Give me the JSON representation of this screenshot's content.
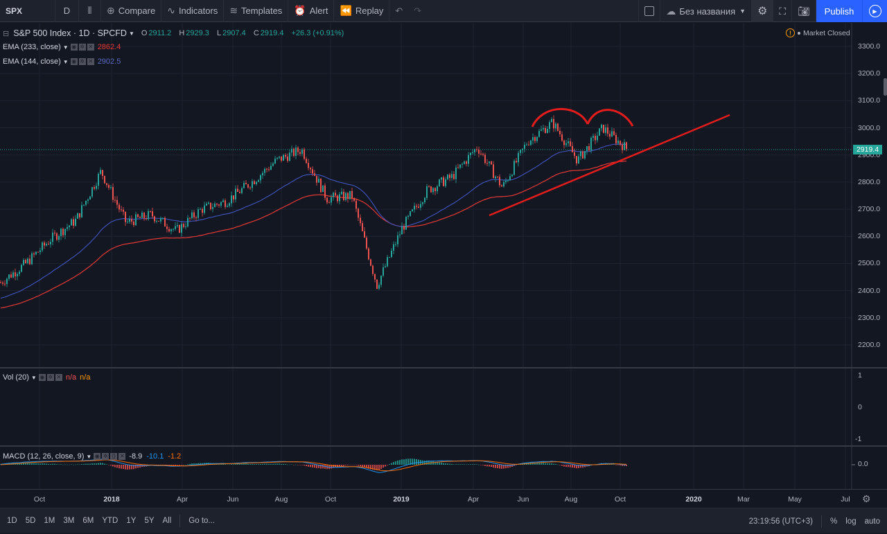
{
  "toolbar": {
    "symbol": "SPX",
    "interval": "D",
    "compare": "Compare",
    "indicators": "Indicators",
    "templates": "Templates",
    "alert": "Alert",
    "replay": "Replay",
    "layout_name": "Без названия",
    "publish": "Publish"
  },
  "main_legend": {
    "title": "S&P 500 Index · 1D · SPCFD",
    "open_k": "O",
    "open": "2911.2",
    "high_k": "H",
    "high": "2929.3",
    "low_k": "L",
    "low": "2907.4",
    "close_k": "C",
    "close": "2919.4",
    "change": "+26.3 (+0.91%)"
  },
  "ema1": {
    "label": "EMA (233, close)",
    "value": "2862.4",
    "color": "#e53935"
  },
  "ema2": {
    "label": "EMA (144, close)",
    "value": "2902.5",
    "color": "#3f51b5"
  },
  "market_status": "Market Closed",
  "price_axis": [
    "3300.0",
    "3200.0",
    "3100.0",
    "3000.0",
    "2900.0",
    "2800.0",
    "2700.0",
    "2600.0",
    "2500.0",
    "2400.0",
    "2300.0",
    "2200.0"
  ],
  "last_price": "2919.4",
  "vol": {
    "label": "Vol (20)",
    "v1": "n/a",
    "v2": "n/a",
    "axis": [
      "1",
      "0",
      "-1"
    ]
  },
  "macd": {
    "label": "MACD (12, 26, close, 9)",
    "v1": "-8.9",
    "v2": "-10.1",
    "v3": "-1.2",
    "axis": "0.0"
  },
  "time_axis": [
    {
      "label": "Oct",
      "bold": false
    },
    {
      "label": "2018",
      "bold": true
    },
    {
      "label": "Apr",
      "bold": false
    },
    {
      "label": "Jun",
      "bold": false
    },
    {
      "label": "Aug",
      "bold": false
    },
    {
      "label": "Oct",
      "bold": false
    },
    {
      "label": "2019",
      "bold": true
    },
    {
      "label": "Apr",
      "bold": false
    },
    {
      "label": "Jun",
      "bold": false
    },
    {
      "label": "Aug",
      "bold": false
    },
    {
      "label": "Oct",
      "bold": false
    },
    {
      "label": "2020",
      "bold": true
    },
    {
      "label": "Mar",
      "bold": false
    },
    {
      "label": "May",
      "bold": false
    },
    {
      "label": "Jul",
      "bold": false
    }
  ],
  "bottom": {
    "ranges": [
      "1D",
      "5D",
      "1M",
      "3M",
      "6M",
      "YTD",
      "1Y",
      "5Y",
      "All"
    ],
    "goto": "Go to...",
    "clock": "23:19:56 (UTC+3)",
    "percent": "%",
    "log": "log",
    "auto": "auto"
  },
  "colors": {
    "up": "#26a69a",
    "down": "#ef5350",
    "bg": "#131722",
    "annotation": "#e31c1c",
    "accent": "#2962ff"
  },
  "chart_data": {
    "type": "line",
    "title": "S&P 500 Index · 1D · SPCFD",
    "ylim": [
      2150,
      3350
    ],
    "series": [
      {
        "name": "S&P 500 Index",
        "x": [
          "2017-09",
          "2017-10",
          "2017-11",
          "2017-12",
          "2018-01",
          "2018-02",
          "2018-03",
          "2018-04",
          "2018-05",
          "2018-06",
          "2018-07",
          "2018-08",
          "2018-09",
          "2018-10",
          "2018-11",
          "2018-12",
          "2019-01",
          "2019-02",
          "2019-03",
          "2019-04",
          "2019-05",
          "2019-06",
          "2019-07",
          "2019-08",
          "2019-09",
          "2019-10"
        ],
        "values": [
          2430,
          2500,
          2590,
          2660,
          2840,
          2650,
          2680,
          2620,
          2700,
          2730,
          2800,
          2880,
          2920,
          2740,
          2750,
          2420,
          2630,
          2770,
          2820,
          2930,
          2780,
          2950,
          3020,
          2880,
          3000,
          2919.4
        ]
      },
      {
        "name": "EMA (233, close)",
        "last": 2862.4
      },
      {
        "name": "EMA (144, close)",
        "last": 2902.5
      }
    ]
  }
}
